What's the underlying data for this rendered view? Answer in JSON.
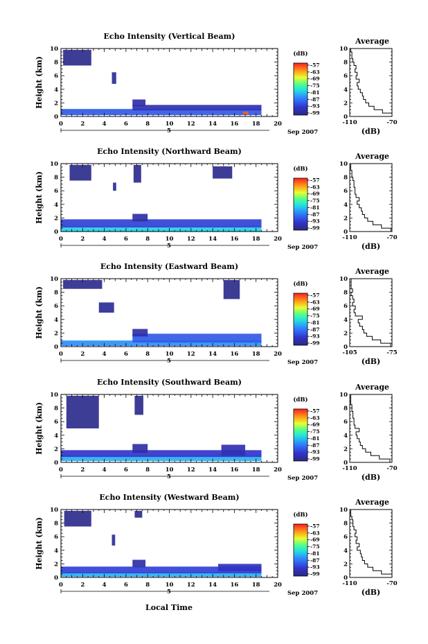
{
  "figure": {
    "x_axis_label": "Local Time",
    "date_label": "Sep 2007",
    "day_label": "5",
    "y_axis_label": "Height (km)",
    "colorbar_unit": "(dB)",
    "profile_title": "Average",
    "profile_xlabel": "(dB)"
  },
  "chart_data": [
    {
      "type": "heatmap",
      "title": "Echo Intensity (Vertical Beam)",
      "xlabel": "",
      "ylabel": "Height (km)",
      "xlim": [
        0,
        20
      ],
      "ylim": [
        0,
        10
      ],
      "x_ticks": [
        0,
        2,
        4,
        6,
        8,
        10,
        12,
        14,
        16,
        18,
        20
      ],
      "y_ticks": [
        0,
        2,
        4,
        6,
        8,
        10
      ],
      "colorbar": {
        "unit": "(dB)",
        "ticks": [
          -57,
          -63,
          -69,
          -75,
          -81,
          -87,
          -93,
          -99
        ]
      },
      "layers": [
        {
          "t0": 0.0,
          "t1": 18.5,
          "h0": 0.2,
          "h1": 1.1,
          "db": -90
        },
        {
          "t0": 6.6,
          "t1": 18.5,
          "h0": 0.9,
          "h1": 1.7,
          "db": -95
        },
        {
          "t0": 6.6,
          "t1": 7.8,
          "h0": 1.5,
          "h1": 2.5,
          "db": -96
        },
        {
          "t0": 0.2,
          "t1": 2.8,
          "h0": 7.5,
          "h1": 9.8,
          "db": -98
        },
        {
          "t0": 4.7,
          "t1": 5.1,
          "h0": 4.8,
          "h1": 6.5,
          "db": -97
        },
        {
          "t0": 16.8,
          "t1": 17.3,
          "h0": 0.3,
          "h1": 0.7,
          "db": -60
        }
      ],
      "profile": {
        "title": "Average",
        "xlabel": "(dB)",
        "xlim": [
          -110,
          -70
        ],
        "x_ticks": [
          -110,
          -70
        ],
        "y_ticks": [
          0,
          2,
          4,
          6,
          8,
          10
        ],
        "h": [
          0,
          0.5,
          1,
          1.5,
          2,
          2.5,
          3,
          3.5,
          4,
          4.5,
          5,
          5.5,
          6,
          6.5,
          7,
          7.5,
          8,
          8.5,
          9,
          9.5
        ],
        "db": [
          -70,
          -79,
          -87,
          -92,
          -95,
          -97,
          -98,
          -100,
          -102,
          -103,
          -101,
          -104,
          -103,
          -105,
          -104,
          -106,
          -107,
          -108,
          -108,
          -109
        ]
      }
    },
    {
      "type": "heatmap",
      "title": "Echo Intensity (Northward Beam)",
      "xlabel": "",
      "ylabel": "Height (km)",
      "xlim": [
        0,
        20
      ],
      "ylim": [
        0,
        10
      ],
      "x_ticks": [
        0,
        2,
        4,
        6,
        8,
        10,
        12,
        14,
        16,
        18,
        20
      ],
      "y_ticks": [
        0,
        2,
        4,
        6,
        8,
        10
      ],
      "colorbar": {
        "unit": "(dB)",
        "ticks": [
          -57,
          -63,
          -69,
          -75,
          -81,
          -87,
          -93,
          -99
        ]
      },
      "layers": [
        {
          "t0": 0.0,
          "t1": 18.5,
          "h0": 0.0,
          "h1": 0.8,
          "db": -82
        },
        {
          "t0": 0.0,
          "t1": 18.5,
          "h0": 0.6,
          "h1": 1.8,
          "db": -92
        },
        {
          "t0": 6.6,
          "t1": 8.0,
          "h0": 1.5,
          "h1": 2.6,
          "db": -96
        },
        {
          "t0": 0.8,
          "t1": 2.8,
          "h0": 7.5,
          "h1": 9.8,
          "db": -98
        },
        {
          "t0": 6.7,
          "t1": 7.4,
          "h0": 7.2,
          "h1": 9.8,
          "db": -98
        },
        {
          "t0": 14.0,
          "t1": 15.8,
          "h0": 7.8,
          "h1": 9.6,
          "db": -98
        },
        {
          "t0": 4.8,
          "t1": 5.1,
          "h0": 6.0,
          "h1": 7.2,
          "db": -97
        }
      ],
      "profile": {
        "title": "Average",
        "xlabel": "(dB)",
        "xlim": [
          -110,
          -70
        ],
        "x_ticks": [
          -110,
          -70
        ],
        "y_ticks": [
          0,
          2,
          4,
          6,
          8,
          10
        ],
        "h": [
          0,
          0.5,
          1,
          1.5,
          2,
          2.5,
          3,
          3.5,
          4,
          4.5,
          5,
          5.5,
          6,
          6.5,
          7,
          7.5,
          8,
          8.5,
          9,
          9.5
        ],
        "db": [
          -71,
          -80,
          -88,
          -93,
          -96,
          -98,
          -99,
          -101,
          -103,
          -101,
          -104,
          -105,
          -105,
          -106,
          -106,
          -107,
          -108,
          -108,
          -109,
          -109
        ]
      }
    },
    {
      "type": "heatmap",
      "title": "Echo Intensity (Eastward Beam)",
      "xlabel": "",
      "ylabel": "Height (km)",
      "xlim": [
        0,
        20
      ],
      "ylim": [
        0,
        10
      ],
      "x_ticks": [
        0,
        2,
        4,
        6,
        8,
        10,
        12,
        14,
        16,
        18,
        20
      ],
      "y_ticks": [
        0,
        2,
        4,
        6,
        8,
        10
      ],
      "colorbar": {
        "unit": "(dB)",
        "ticks": [
          -57,
          -63,
          -69,
          -75,
          -81,
          -87,
          -93,
          -99
        ]
      },
      "layers": [
        {
          "t0": 0.0,
          "t1": 18.5,
          "h0": 0.1,
          "h1": 0.9,
          "db": -86
        },
        {
          "t0": 6.6,
          "t1": 18.5,
          "h0": 0.6,
          "h1": 1.9,
          "db": -90
        },
        {
          "t0": 6.6,
          "t1": 8.0,
          "h0": 1.5,
          "h1": 2.6,
          "db": -96
        },
        {
          "t0": 0.2,
          "t1": 3.8,
          "h0": 8.5,
          "h1": 9.8,
          "db": -98
        },
        {
          "t0": 3.5,
          "t1": 4.9,
          "h0": 5.0,
          "h1": 6.5,
          "db": -97
        },
        {
          "t0": 15.0,
          "t1": 16.5,
          "h0": 7.0,
          "h1": 9.8,
          "db": -98
        }
      ],
      "profile": {
        "title": "Average",
        "xlabel": "(dB)",
        "xlim": [
          -105,
          -75
        ],
        "x_ticks": [
          -105,
          -75
        ],
        "y_ticks": [
          0,
          2,
          4,
          6,
          8,
          10
        ],
        "h": [
          0,
          0.5,
          1,
          1.5,
          2,
          2.5,
          3,
          3.5,
          4,
          4.5,
          5,
          5.5,
          6,
          6.5,
          7,
          7.5,
          8,
          8.5,
          9,
          9.5
        ],
        "db": [
          -76,
          -83,
          -89,
          -93,
          -95,
          -96,
          -98,
          -99,
          -96,
          -101,
          -102,
          -101,
          -103,
          -102,
          -103,
          -104,
          -103,
          -104,
          -104,
          -104
        ]
      }
    },
    {
      "type": "heatmap",
      "title": "Echo Intensity (Southward Beam)",
      "xlabel": "",
      "ylabel": "Height (km)",
      "xlim": [
        0,
        20
      ],
      "ylim": [
        0,
        10
      ],
      "x_ticks": [
        0,
        2,
        4,
        6,
        8,
        10,
        12,
        14,
        16,
        18,
        20
      ],
      "y_ticks": [
        0,
        2,
        4,
        6,
        8,
        10
      ],
      "colorbar": {
        "unit": "(dB)",
        "ticks": [
          -57,
          -63,
          -69,
          -75,
          -81,
          -87,
          -93,
          -99
        ]
      },
      "layers": [
        {
          "t0": 0.0,
          "t1": 18.5,
          "h0": 0.2,
          "h1": 1.0,
          "db": -84
        },
        {
          "t0": 0.0,
          "t1": 18.5,
          "h0": 0.8,
          "h1": 1.8,
          "db": -93
        },
        {
          "t0": 6.6,
          "t1": 8.0,
          "h0": 1.4,
          "h1": 2.7,
          "db": -96
        },
        {
          "t0": 14.8,
          "t1": 17.0,
          "h0": 1.0,
          "h1": 2.6,
          "db": -95
        },
        {
          "t0": 0.5,
          "t1": 3.5,
          "h0": 5.0,
          "h1": 9.8,
          "db": -98
        },
        {
          "t0": 6.8,
          "t1": 7.6,
          "h0": 7.0,
          "h1": 9.8,
          "db": -98
        }
      ],
      "profile": {
        "title": "Average",
        "xlabel": "(dB)",
        "xlim": [
          -110,
          -70
        ],
        "x_ticks": [
          -110,
          -70
        ],
        "y_ticks": [
          0,
          2,
          4,
          6,
          8,
          10
        ],
        "h": [
          0,
          0.5,
          1,
          1.5,
          2,
          2.5,
          3,
          3.5,
          4,
          4.5,
          5,
          5.5,
          6,
          6.5,
          7,
          7.5,
          8,
          8.5,
          9,
          9.5
        ],
        "db": [
          -72,
          -82,
          -90,
          -95,
          -98,
          -100,
          -101,
          -103,
          -104,
          -101,
          -105,
          -106,
          -106,
          -107,
          -107,
          -108,
          -108,
          -109,
          -109,
          -109
        ]
      }
    },
    {
      "type": "heatmap",
      "title": "Echo Intensity (Westward Beam)",
      "xlabel": "Local Time",
      "ylabel": "Height (km)",
      "xlim": [
        0,
        20
      ],
      "ylim": [
        0,
        10
      ],
      "x_ticks": [
        0,
        2,
        4,
        6,
        8,
        10,
        12,
        14,
        16,
        18,
        20
      ],
      "y_ticks": [
        0,
        2,
        4,
        6,
        8,
        10
      ],
      "colorbar": {
        "unit": "(dB)",
        "ticks": [
          -57,
          -63,
          -69,
          -75,
          -81,
          -87,
          -93,
          -99
        ]
      },
      "layers": [
        {
          "t0": 0.0,
          "t1": 18.5,
          "h0": 0.1,
          "h1": 0.8,
          "db": -84
        },
        {
          "t0": 0.0,
          "t1": 18.5,
          "h0": 0.6,
          "h1": 1.6,
          "db": -92
        },
        {
          "t0": 6.6,
          "t1": 7.8,
          "h0": 1.5,
          "h1": 2.6,
          "db": -96
        },
        {
          "t0": 14.5,
          "t1": 18.5,
          "h0": 0.9,
          "h1": 2.0,
          "db": -94
        },
        {
          "t0": 0.3,
          "t1": 2.8,
          "h0": 7.5,
          "h1": 9.8,
          "db": -98
        },
        {
          "t0": 6.8,
          "t1": 7.5,
          "h0": 8.8,
          "h1": 9.8,
          "db": -98
        },
        {
          "t0": 4.7,
          "t1": 5.0,
          "h0": 4.7,
          "h1": 6.3,
          "db": -97
        }
      ],
      "profile": {
        "title": "Average",
        "xlabel": "(dB)",
        "xlim": [
          -110,
          -70
        ],
        "x_ticks": [
          -110,
          -70
        ],
        "y_ticks": [
          0,
          2,
          4,
          6,
          8,
          10
        ],
        "h": [
          0,
          0.5,
          1,
          1.5,
          2,
          2.5,
          3,
          3.5,
          4,
          4.5,
          5,
          5.5,
          6,
          6.5,
          7,
          7.5,
          8,
          8.5,
          9,
          9.5
        ],
        "db": [
          -70,
          -80,
          -88,
          -93,
          -96,
          -98,
          -99,
          -100,
          -103,
          -101,
          -104,
          -103,
          -105,
          -104,
          -106,
          -107,
          -107,
          -108,
          -109,
          -109
        ]
      }
    }
  ]
}
